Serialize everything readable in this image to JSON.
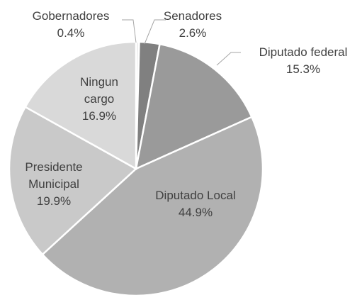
{
  "chart_data": {
    "type": "pie",
    "categories": [
      "Gobernadores",
      "Senadores",
      "Diputado federal",
      "Diputado Local",
      "Presidente Municipal",
      "Ningun cargo"
    ],
    "values": [
      0.4,
      2.6,
      15.3,
      44.9,
      19.9,
      16.9
    ],
    "value_labels": [
      "0.4%",
      "2.6%",
      "15.3%",
      "44.9%",
      "19.9%",
      "16.9%"
    ],
    "colors": [
      "#ececec",
      "#808080",
      "#9a9a9a",
      "#b1b1b1",
      "#c9c9c9",
      "#d9d9d9"
    ]
  }
}
